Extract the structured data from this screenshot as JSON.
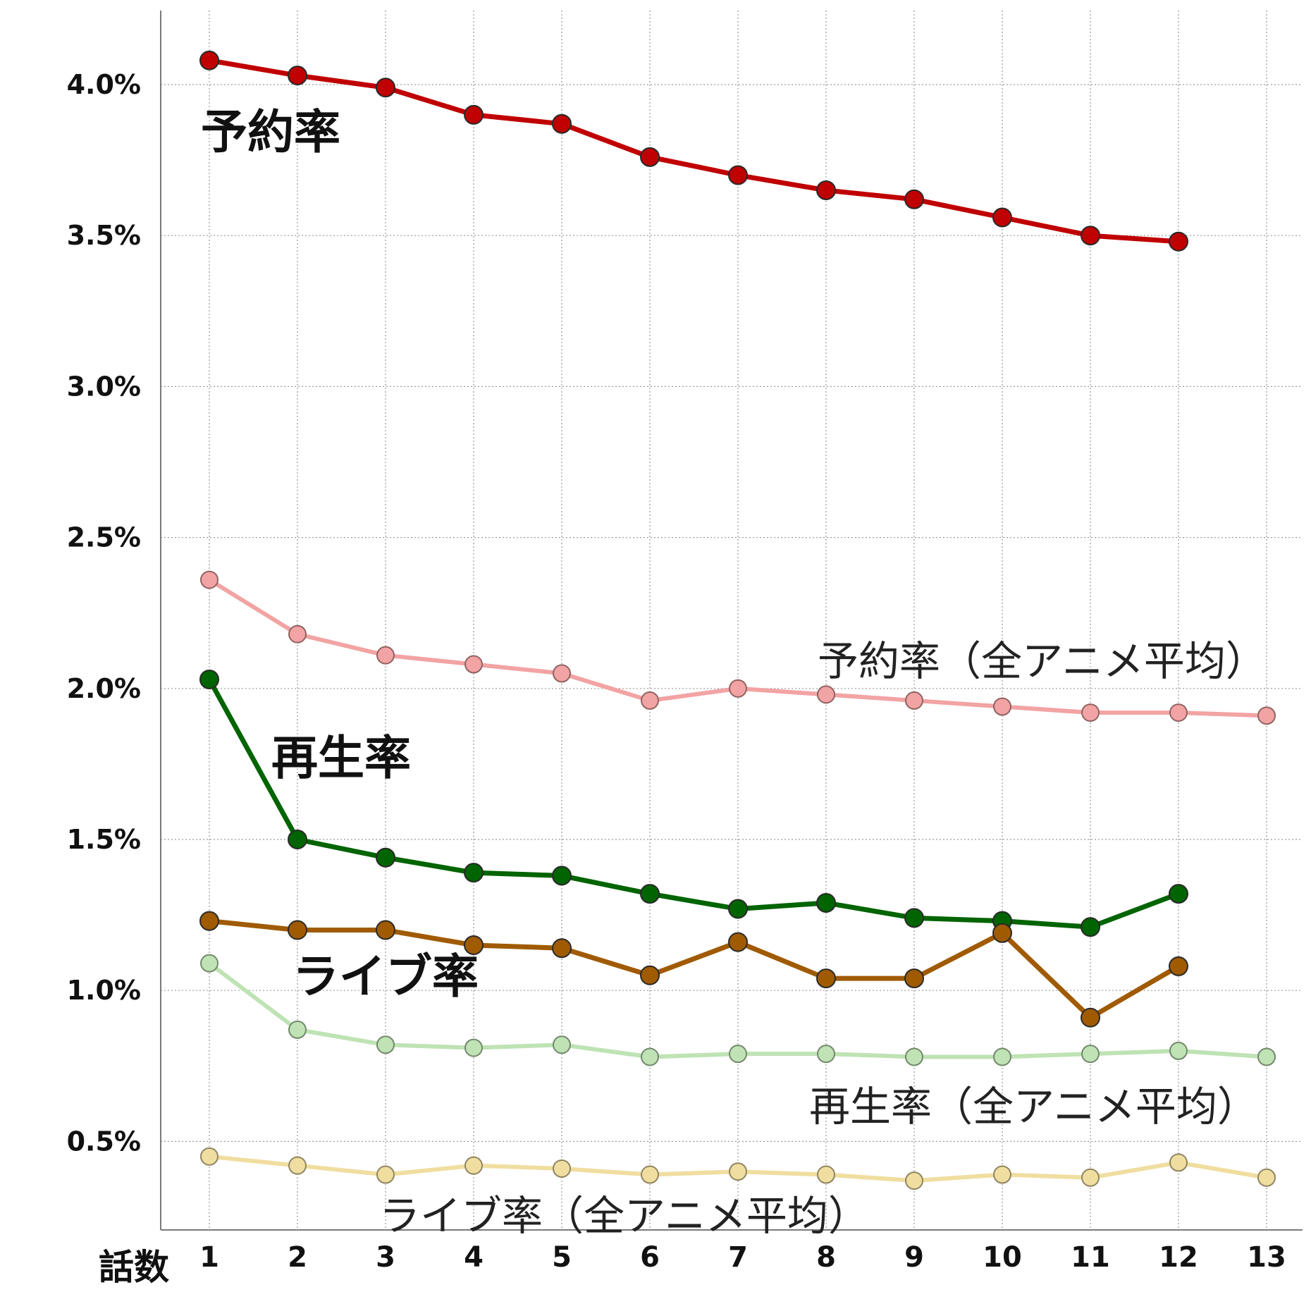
{
  "chart_data": {
    "type": "line",
    "xlabel": "話数",
    "ylabel": "",
    "x": [
      1,
      2,
      3,
      4,
      5,
      6,
      7,
      8,
      9,
      10,
      11,
      12,
      13
    ],
    "ylim": [
      0.17,
      4.25
    ],
    "yticks": [
      "0.5%",
      "1.0%",
      "1.5%",
      "2.0%",
      "2.5%",
      "3.0%",
      "3.5%",
      "4.0%"
    ],
    "ytick_values": [
      0.5,
      1.0,
      1.5,
      2.0,
      2.5,
      3.0,
      3.5,
      4.0
    ],
    "grid": true,
    "series": [
      {
        "name": "予約率",
        "color": "#c00000",
        "emphasis": "strong",
        "values": [
          4.08,
          4.03,
          3.99,
          3.9,
          3.87,
          3.76,
          3.7,
          3.65,
          3.62,
          3.56,
          3.5,
          3.48,
          null
        ]
      },
      {
        "name": "予約率（全アニメ平均）",
        "color": "#f2a3a3",
        "emphasis": "light",
        "values": [
          2.36,
          2.18,
          2.11,
          2.08,
          2.05,
          1.96,
          2.0,
          1.98,
          1.96,
          1.94,
          1.92,
          1.92,
          1.91
        ]
      },
      {
        "name": "再生率",
        "color": "#006400",
        "emphasis": "strong",
        "values": [
          2.03,
          1.5,
          1.44,
          1.39,
          1.38,
          1.32,
          1.27,
          1.29,
          1.24,
          1.23,
          1.21,
          1.32,
          null
        ]
      },
      {
        "name": "ライブ率",
        "color": "#a05a00",
        "emphasis": "strong",
        "values": [
          1.23,
          1.2,
          1.2,
          1.15,
          1.14,
          1.05,
          1.16,
          1.04,
          1.04,
          1.19,
          0.91,
          1.08,
          null
        ]
      },
      {
        "name": "再生率（全アニメ平均）",
        "color": "#bfe3b4",
        "emphasis": "light",
        "values": [
          1.09,
          0.87,
          0.82,
          0.81,
          0.82,
          0.78,
          0.79,
          0.79,
          0.78,
          0.78,
          0.79,
          0.8,
          0.78
        ]
      },
      {
        "name": "ライブ率（全アニメ平均）",
        "color": "#f0dea0",
        "emphasis": "light",
        "values": [
          0.45,
          0.42,
          0.39,
          0.42,
          0.41,
          0.39,
          0.4,
          0.39,
          0.37,
          0.39,
          0.38,
          0.43,
          0.38
        ]
      }
    ],
    "series_labels": [
      {
        "series": 0,
        "text": "予約率"
      },
      {
        "series": 1,
        "text": "予約率（全アニメ平均）"
      },
      {
        "series": 2,
        "text": "再生率"
      },
      {
        "series": 3,
        "text": "ライブ率"
      },
      {
        "series": 4,
        "text": "再生率（全アニメ平均）"
      },
      {
        "series": 5,
        "text": "ライブ率（全アニメ平均）"
      }
    ]
  }
}
